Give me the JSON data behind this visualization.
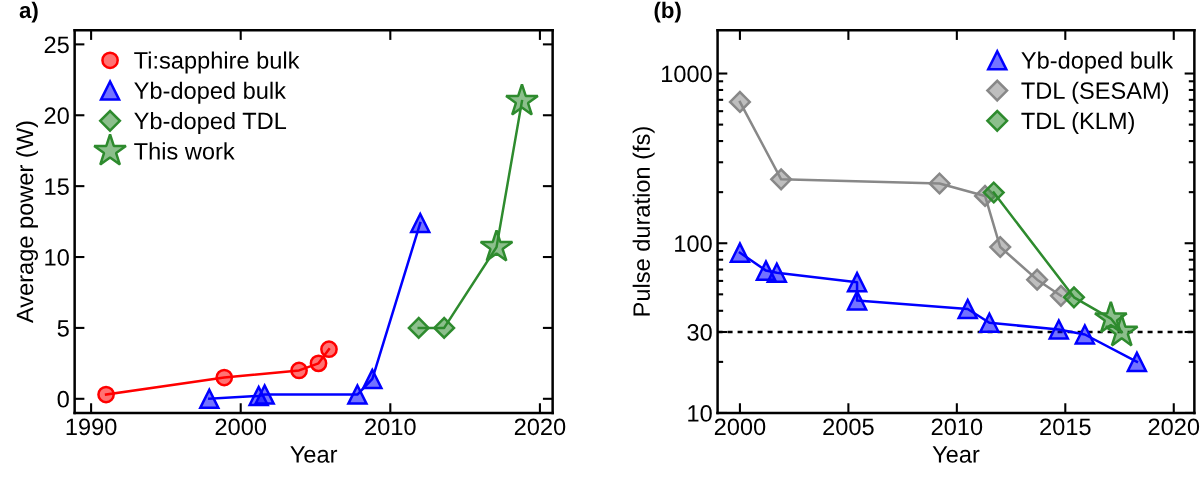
{
  "chart_data": [
    {
      "type": "line",
      "title": "a)",
      "xlabel": "Year",
      "ylabel": "Average power (W)",
      "xlim": [
        1988.9,
        2020.85
      ],
      "ylim": [
        -1,
        26
      ],
      "xticks": [
        1990,
        2000,
        2010,
        2020
      ],
      "yticks": [
        0,
        5,
        10,
        15,
        20,
        25
      ],
      "grid": false,
      "legend": "top left",
      "series": [
        {
          "name": "Ti:sapphire bulk",
          "color": "#ff0000",
          "marker": "circle",
          "x": [
            1991.0,
            1998.9,
            2003.9,
            2005.2,
            2005.9
          ],
          "values": [
            0.3,
            1.5,
            2.0,
            2.5,
            3.5
          ]
        },
        {
          "name": "Yb-doped bulk",
          "color": "#0000ff",
          "marker": "triangle",
          "x": [
            1997.9,
            2001.2,
            2001.6,
            2007.8,
            2008.8,
            2012.0
          ],
          "values": [
            0.0,
            0.2,
            0.3,
            0.3,
            1.4,
            12.4
          ]
        },
        {
          "color": "#2e8b2e",
          "marker": "none",
          "x": [
            2011.9,
            2013.6,
            2017.1,
            2018.8
          ],
          "values": [
            5.0,
            5.0,
            10.7,
            21.0
          ]
        },
        {
          "type": "scatter",
          "name": "Yb-doped TDL",
          "color": "#2e8b2e",
          "marker": "diamond",
          "x": [
            2011.9,
            2013.6
          ],
          "values": [
            5.0,
            5.0
          ]
        },
        {
          "type": "scatter",
          "name": "This work",
          "color": "#2e8b2e",
          "marker": "star",
          "x": [
            2017.1,
            2018.8
          ],
          "values": [
            10.7,
            21.0
          ]
        }
      ]
    },
    {
      "type": "line",
      "title": "(b)",
      "xlabel": "Year",
      "ylabel": "Pulse duration (fs)",
      "log": "y",
      "xlim": [
        1998.97,
        2020.95
      ],
      "ylim": [
        10,
        1800
      ],
      "xticks": [
        2000,
        2005,
        2010,
        2015,
        2020
      ],
      "yticks": [
        10,
        30,
        100,
        1000
      ],
      "grid": false,
      "legend": "top right",
      "ref_lines": [
        {
          "axis": "y",
          "value": 30,
          "color": "#000000",
          "line_style": "dotted"
        }
      ],
      "series": [
        {
          "name": "Yb-doped bulk",
          "color": "#0000ff",
          "marker": "triangle",
          "x": [
            2000.0,
            2001.2,
            2001.7,
            2005.4,
            2005.4,
            2010.5,
            2011.5,
            2014.7,
            2015.9,
            2018.3
          ],
          "values": [
            88,
            69,
            67,
            59,
            46,
            41,
            34,
            31,
            29,
            20
          ]
        },
        {
          "name": "TDL (SESAM)",
          "color": "#888888",
          "marker": "diamond",
          "x": [
            2000.0,
            2001.9,
            2009.2,
            2011.3,
            2012.0,
            2013.7,
            2014.8
          ],
          "values": [
            680,
            238,
            225,
            190,
            95,
            61,
            49
          ]
        },
        {
          "color": "#2e8b2e",
          "marker": "none",
          "x": [
            2011.7,
            2015.4,
            2017.1,
            2017.6
          ],
          "values": [
            199,
            48,
            36,
            30
          ]
        },
        {
          "type": "scatter",
          "name": "TDL (KLM)",
          "color": "#2e8b2e",
          "marker": "diamond",
          "x": [
            2011.7,
            2015.4
          ],
          "values": [
            199,
            48
          ]
        },
        {
          "type": "scatter",
          "color": "#2e8b2e",
          "marker": "star",
          "x": [
            2017.1,
            2017.6
          ],
          "values": [
            36,
            30
          ]
        }
      ]
    }
  ]
}
